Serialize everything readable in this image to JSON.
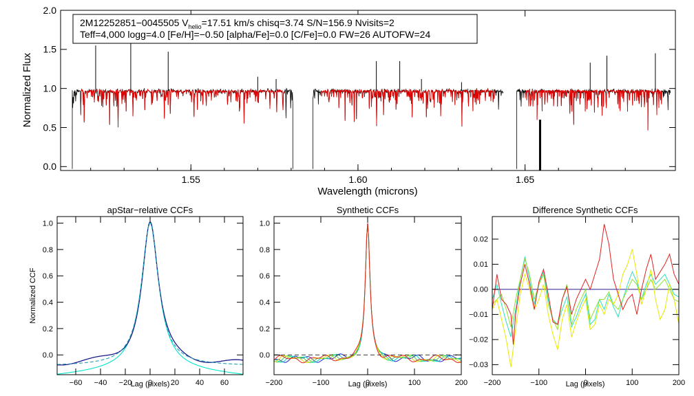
{
  "chart_data": [
    {
      "id": "spectrum",
      "type": "line",
      "title": "",
      "xlabel": "Wavelength (microns)",
      "ylabel": "Normalized Flux",
      "xlim": [
        1.511,
        1.695
      ],
      "ylim": [
        -0.05,
        2.0
      ],
      "xticks": [
        {
          "v": 1.55,
          "label": "1.55"
        },
        {
          "v": 1.6,
          "label": "1.60"
        },
        {
          "v": 1.65,
          "label": "1.65"
        }
      ],
      "yticks": [
        {
          "v": 0.0,
          "label": "0.0"
        },
        {
          "v": 0.5,
          "label": "0.5"
        },
        {
          "v": 1.0,
          "label": "1.0"
        },
        {
          "v": 1.5,
          "label": "1.5"
        },
        {
          "v": 2.0,
          "label": "2.0"
        }
      ],
      "annotation": {
        "line1_prefix": "2M12252851−0045505  V",
        "line1_sub": "helio",
        "line1_rest": "=17.51 km/s  chisq=3.74  S/N=156.9  Nvisits=2",
        "line2": "Teff=4,000 logg=4.0 [Fe/H]=−0.50 [alpha/Fe]=0.0 [C/Fe]=0.0 FW=26 AUTOFW=24"
      },
      "chips": [
        [
          1.5145,
          1.5805
        ],
        [
          1.5865,
          1.6435
        ],
        [
          1.6475,
          1.6935
        ]
      ],
      "emission_lines": [
        {
          "w": 1.5215,
          "v": 1.55
        },
        {
          "w": 1.532,
          "v": 1.88
        },
        {
          "w": 1.5432,
          "v": 1.47
        },
        {
          "w": 1.57,
          "v": 1.15
        },
        {
          "w": 1.5755,
          "v": 1.12
        },
        {
          "w": 1.6055,
          "v": 1.35
        },
        {
          "w": 1.6125,
          "v": 1.35
        },
        {
          "w": 1.619,
          "v": 1.12
        },
        {
          "w": 1.6695,
          "v": 1.33
        },
        {
          "w": 1.6745,
          "v": 1.42
        },
        {
          "w": 1.689,
          "v": 1.45
        },
        {
          "w": 1.631,
          "v": 1.08
        }
      ],
      "series": [
        {
          "name": "observed",
          "color": "#000000"
        },
        {
          "name": "synthetic",
          "color": "#e00000"
        }
      ]
    },
    {
      "id": "apstar",
      "type": "line",
      "title": "apStar−relative CCFs",
      "xlabel": "Lag (pixels)",
      "ylabel": "Normalized CCF",
      "xlim": [
        -75,
        75
      ],
      "ylim": [
        -0.15,
        1.05
      ],
      "xticks": [
        {
          "v": -60,
          "label": "−60"
        },
        {
          "v": -40,
          "label": "−40"
        },
        {
          "v": -20,
          "label": "−20"
        },
        {
          "v": 0,
          "label": "0"
        },
        {
          "v": 20,
          "label": "20"
        },
        {
          "v": 40,
          "label": "40"
        },
        {
          "v": 60,
          "label": "60"
        }
      ],
      "yticks": [
        {
          "v": 0.0,
          "label": "0.0"
        },
        {
          "v": 0.2,
          "label": "0.2"
        },
        {
          "v": 0.4,
          "label": "0.4"
        },
        {
          "v": 0.6,
          "label": "0.6"
        },
        {
          "v": 0.8,
          "label": "0.8"
        },
        {
          "v": 1.0,
          "label": "1.0"
        }
      ],
      "series": [
        {
          "name": "visit 1",
          "color": "#00e5cc"
        },
        {
          "name": "visit 2",
          "color": "#1a1a8c"
        },
        {
          "name": "combined",
          "color": "#20a0b0",
          "dash": true
        }
      ]
    },
    {
      "id": "synth",
      "type": "line",
      "title": "Synthetic CCFs",
      "xlabel": "Lag (pixels)",
      "ylabel": "",
      "xlim": [
        -200,
        200
      ],
      "ylim": [
        -0.15,
        1.05
      ],
      "xticks": [
        {
          "v": -200,
          "label": "−200"
        },
        {
          "v": -100,
          "label": "−100"
        },
        {
          "v": 0,
          "label": "0"
        },
        {
          "v": 100,
          "label": "100"
        },
        {
          "v": 200,
          "label": "200"
        }
      ],
      "yticks": [
        {
          "v": 0.0,
          "label": "0.0"
        },
        {
          "v": 0.2,
          "label": "0.2"
        },
        {
          "v": 0.4,
          "label": "0.4"
        },
        {
          "v": 0.6,
          "label": "0.6"
        },
        {
          "v": 0.8,
          "label": "0.8"
        },
        {
          "v": 1.0,
          "label": "1.0"
        }
      ],
      "baseline": 0.0,
      "series": [
        {
          "name": "blue",
          "color": "#2020d0"
        },
        {
          "name": "cyan",
          "color": "#00d8c8"
        },
        {
          "name": "green",
          "color": "#40d040"
        },
        {
          "name": "yellow",
          "color": "#e0e000"
        },
        {
          "name": "red",
          "color": "#e02020"
        }
      ]
    },
    {
      "id": "diff",
      "type": "line",
      "title": "Difference Synthetic CCFs",
      "xlabel": "Lag (pixels)",
      "ylabel": "",
      "xlim": [
        -200,
        200
      ],
      "ylim": [
        -0.034,
        0.029
      ],
      "xticks": [
        {
          "v": -200,
          "label": "−200"
        },
        {
          "v": -100,
          "label": "−100"
        },
        {
          "v": 0,
          "label": "0"
        },
        {
          "v": 100,
          "label": "100"
        },
        {
          "v": 200,
          "label": "200"
        }
      ],
      "yticks": [
        {
          "v": -0.03,
          "label": "−0.03"
        },
        {
          "v": -0.02,
          "label": "−0.02"
        },
        {
          "v": -0.01,
          "label": "−0.01"
        },
        {
          "v": 0.0,
          "label": "0.00"
        },
        {
          "v": 0.01,
          "label": "0.01"
        },
        {
          "v": 0.02,
          "label": "0.02"
        }
      ],
      "baseline": 0.0,
      "series": [
        {
          "name": "navy",
          "color": "#2a1a8a",
          "points": [
            [
              -200,
              0.0
            ],
            [
              200,
              0.0
            ]
          ]
        },
        {
          "name": "cyan",
          "color": "#30e0c0",
          "points": [
            [
              -200,
              -0.004
            ],
            [
              -190,
              0.002
            ],
            [
              -180,
              -0.006
            ],
            [
              -170,
              -0.013
            ],
            [
              -160,
              -0.019
            ],
            [
              -150,
              -0.008
            ],
            [
              -140,
              0.004
            ],
            [
              -130,
              0.013
            ],
            [
              -120,
              0.004
            ],
            [
              -110,
              -0.006
            ],
            [
              -100,
              0.002
            ],
            [
              -90,
              0.007
            ],
            [
              -80,
              -0.004
            ],
            [
              -70,
              -0.012
            ],
            [
              -60,
              -0.014
            ],
            [
              -50,
              -0.008
            ],
            [
              -40,
              -0.003
            ],
            [
              -30,
              -0.015
            ],
            [
              -20,
              -0.011
            ],
            [
              -10,
              -0.006
            ],
            [
              0,
              -0.002
            ],
            [
              10,
              -0.014
            ],
            [
              20,
              -0.012
            ],
            [
              30,
              -0.004
            ],
            [
              40,
              -0.008
            ],
            [
              50,
              -0.002
            ],
            [
              60,
              -0.007
            ],
            [
              70,
              -0.011
            ],
            [
              80,
              -0.004
            ],
            [
              90,
              0.002
            ],
            [
              100,
              0.007
            ],
            [
              110,
              0.003
            ],
            [
              120,
              -0.004
            ],
            [
              130,
              0.002
            ],
            [
              140,
              0.006
            ],
            [
              150,
              0.002
            ],
            [
              160,
              0.004
            ],
            [
              170,
              0.006
            ],
            [
              180,
              0.002
            ],
            [
              190,
              -0.002
            ],
            [
              200,
              -0.003
            ]
          ]
        },
        {
          "name": "green",
          "color": "#90e030",
          "points": [
            [
              -200,
              -0.006
            ],
            [
              -190,
              -0.004
            ],
            [
              -180,
              -0.002
            ],
            [
              -170,
              -0.008
            ],
            [
              -160,
              -0.015
            ],
            [
              -150,
              -0.004
            ],
            [
              -140,
              0.004
            ],
            [
              -130,
              0.012
            ],
            [
              -120,
              0.006
            ],
            [
              -110,
              -0.004
            ],
            [
              -100,
              0.002
            ],
            [
              -90,
              0.006
            ],
            [
              -80,
              -0.006
            ],
            [
              -70,
              -0.012
            ],
            [
              -60,
              -0.016
            ],
            [
              -50,
              -0.004
            ],
            [
              -40,
              0.002
            ],
            [
              -30,
              -0.014
            ],
            [
              -20,
              -0.008
            ],
            [
              -10,
              -0.004
            ],
            [
              0,
              0.0
            ],
            [
              10,
              -0.012
            ],
            [
              20,
              -0.008
            ],
            [
              30,
              -0.004
            ],
            [
              40,
              -0.004
            ],
            [
              50,
              -0.001
            ],
            [
              60,
              -0.006
            ],
            [
              70,
              -0.008
            ],
            [
              80,
              -0.004
            ],
            [
              90,
              0.0
            ],
            [
              100,
              0.004
            ],
            [
              110,
              0.002
            ],
            [
              120,
              -0.004
            ],
            [
              130,
              0.0
            ],
            [
              140,
              0.004
            ],
            [
              150,
              0.0
            ],
            [
              160,
              0.002
            ],
            [
              170,
              0.004
            ],
            [
              180,
              0.0
            ],
            [
              190,
              -0.004
            ],
            [
              200,
              -0.005
            ]
          ]
        },
        {
          "name": "yellow",
          "color": "#e8e800",
          "points": [
            [
              -200,
              -0.008
            ],
            [
              -190,
              -0.004
            ],
            [
              -180,
              -0.012
            ],
            [
              -170,
              -0.02
            ],
            [
              -160,
              -0.031
            ],
            [
              -150,
              -0.016
            ],
            [
              -140,
              -0.002
            ],
            [
              -130,
              0.006
            ],
            [
              -120,
              0.0
            ],
            [
              -110,
              -0.008
            ],
            [
              -100,
              -0.004
            ],
            [
              -90,
              0.002
            ],
            [
              -80,
              -0.01
            ],
            [
              -70,
              -0.018
            ],
            [
              -60,
              -0.024
            ],
            [
              -50,
              -0.012
            ],
            [
              -40,
              -0.006
            ],
            [
              -30,
              -0.019
            ],
            [
              -20,
              -0.013
            ],
            [
              -10,
              -0.008
            ],
            [
              0,
              -0.004
            ],
            [
              10,
              -0.016
            ],
            [
              20,
              -0.014
            ],
            [
              30,
              -0.006
            ],
            [
              40,
              -0.01
            ],
            [
              50,
              -0.004
            ],
            [
              60,
              -0.006
            ],
            [
              70,
              -0.002
            ],
            [
              80,
              0.006
            ],
            [
              90,
              0.01
            ],
            [
              100,
              0.016
            ],
            [
              110,
              0.006
            ],
            [
              120,
              -0.006
            ],
            [
              130,
              0.0
            ],
            [
              140,
              0.008
            ],
            [
              150,
              -0.004
            ],
            [
              160,
              -0.012
            ],
            [
              170,
              -0.008
            ],
            [
              180,
              0.002
            ],
            [
              190,
              -0.004
            ],
            [
              200,
              -0.014
            ]
          ]
        },
        {
          "name": "red",
          "color": "#e02020",
          "points": [
            [
              -200,
              -0.008
            ],
            [
              -190,
              0.006
            ],
            [
              -180,
              -0.004
            ],
            [
              -170,
              -0.006
            ],
            [
              -160,
              -0.01
            ],
            [
              -155,
              -0.022
            ],
            [
              -150,
              -0.01
            ],
            [
              -140,
              0.002
            ],
            [
              -130,
              0.01
            ],
            [
              -120,
              0.002
            ],
            [
              -110,
              -0.008
            ],
            [
              -100,
              0.003
            ],
            [
              -90,
              0.008
            ],
            [
              -80,
              -0.002
            ],
            [
              -70,
              -0.013
            ],
            [
              -60,
              -0.014
            ],
            [
              -50,
              -0.004
            ],
            [
              -40,
              0.001
            ],
            [
              -30,
              -0.01
            ],
            [
              -20,
              -0.004
            ],
            [
              -10,
              0.0
            ],
            [
              0,
              0.004
            ],
            [
              10,
              0.0
            ],
            [
              20,
              0.006
            ],
            [
              30,
              0.012
            ],
            [
              40,
              0.026
            ],
            [
              50,
              0.018
            ],
            [
              60,
              0.004
            ],
            [
              70,
              -0.002
            ],
            [
              80,
              -0.008
            ],
            [
              90,
              -0.004
            ],
            [
              100,
              -0.002
            ],
            [
              110,
              -0.01
            ],
            [
              120,
              0.0
            ],
            [
              130,
              0.008
            ],
            [
              140,
              0.014
            ],
            [
              150,
              0.004
            ],
            [
              160,
              0.007
            ],
            [
              170,
              0.01
            ],
            [
              180,
              0.014
            ],
            [
              190,
              0.006
            ],
            [
              200,
              0.002
            ]
          ]
        }
      ]
    }
  ]
}
